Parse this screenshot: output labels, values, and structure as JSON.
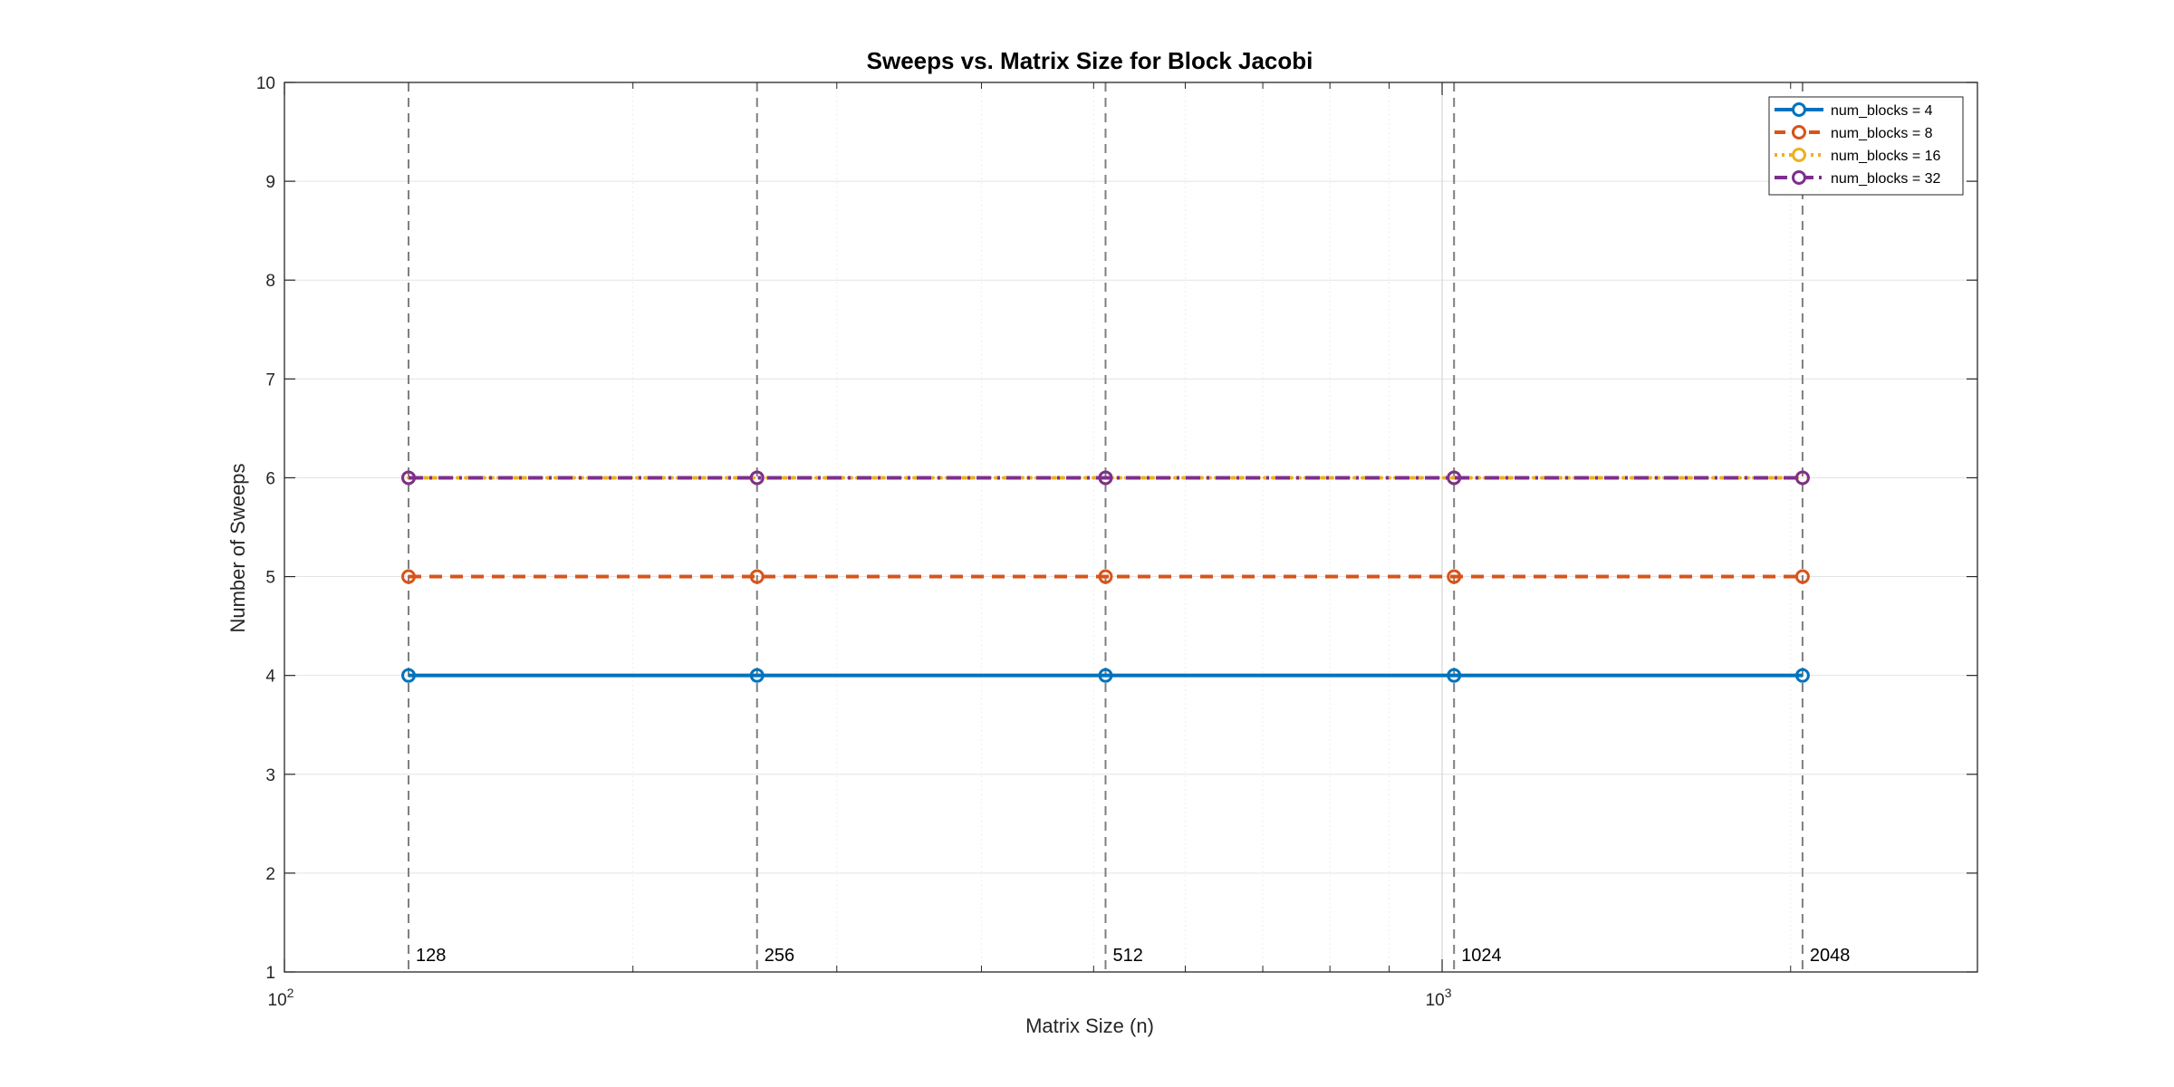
{
  "chart_data": {
    "type": "line",
    "title": "Sweeps vs. Matrix Size for Block Jacobi",
    "xlabel": "Matrix Size (n)",
    "ylabel": "Number of Sweeps",
    "x_scale": "log",
    "xlim": [
      100,
      2900
    ],
    "ylim": [
      1,
      10
    ],
    "x": [
      128,
      256,
      512,
      1024,
      2048
    ],
    "x_ticks": [
      {
        "value": 100,
        "base": "10",
        "exp": "2"
      },
      {
        "value": 1000,
        "base": "10",
        "exp": "3"
      }
    ],
    "y_ticks": [
      1,
      2,
      3,
      4,
      5,
      6,
      7,
      8,
      9,
      10
    ],
    "grid": true,
    "minor_grid": true,
    "legend_position": "top-right",
    "series": [
      {
        "name": "num_blocks = 4",
        "values": [
          4,
          4,
          4,
          4,
          4
        ],
        "color": "#0072BD",
        "line_style": "solid",
        "marker": "circle"
      },
      {
        "name": "num_blocks = 8",
        "values": [
          5,
          5,
          5,
          5,
          5
        ],
        "color": "#D95319",
        "line_style": "dashed",
        "marker": "circle"
      },
      {
        "name": "num_blocks = 16",
        "values": [
          6,
          6,
          6,
          6,
          6
        ],
        "color": "#EDB120",
        "line_style": "dotted",
        "marker": "circle"
      },
      {
        "name": "num_blocks = 32",
        "values": [
          6,
          6,
          6,
          6,
          6
        ],
        "color": "#7E2F8E",
        "line_style": "dashdot",
        "marker": "circle"
      }
    ],
    "annotations": [
      {
        "x": 128,
        "label": "128"
      },
      {
        "x": 256,
        "label": "256"
      },
      {
        "x": 512,
        "label": "512"
      },
      {
        "x": 1024,
        "label": "1024"
      },
      {
        "x": 2048,
        "label": "2048"
      }
    ]
  }
}
